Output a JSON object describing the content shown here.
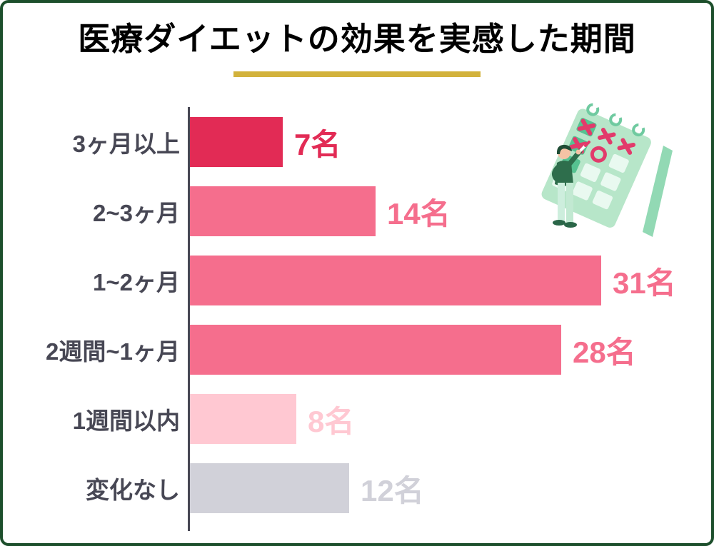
{
  "title": "医療ダイエットの効果を実感した期間",
  "colors": {
    "frame_border": "#1d4f2c",
    "title_text": "#000000",
    "title_underline": "#d2b23c",
    "category_label": "#474754",
    "axis_line": "#474754"
  },
  "chart_data": {
    "type": "bar",
    "orientation": "horizontal",
    "title": "医療ダイエットの効果を実感した期間",
    "unit": "名",
    "categories": [
      "3ヶ月以上",
      "2~3ヶ月",
      "1~2ヶ月",
      "2週間~1ヶ月",
      "1週間以内",
      "変化なし"
    ],
    "values": [
      7,
      14,
      31,
      28,
      8,
      12
    ],
    "value_labels": [
      "7名",
      "14名",
      "31名",
      "28名",
      "8名",
      "12名"
    ],
    "bar_colors": [
      "#e22b55",
      "#f56e8d",
      "#f56e8d",
      "#f56e8d",
      "#ffc8d2",
      "#d1d1d9"
    ],
    "value_label_colors": [
      "#e22b55",
      "#f56e8d",
      "#f56e8d",
      "#f56e8d",
      "#ffc8d2",
      "#d1d1d9"
    ],
    "xlim": [
      0,
      31
    ],
    "grid": false,
    "legend": false,
    "value_label_position": "right-of-bar"
  },
  "illustration": {
    "name": "person-marking-calendar-icon"
  }
}
